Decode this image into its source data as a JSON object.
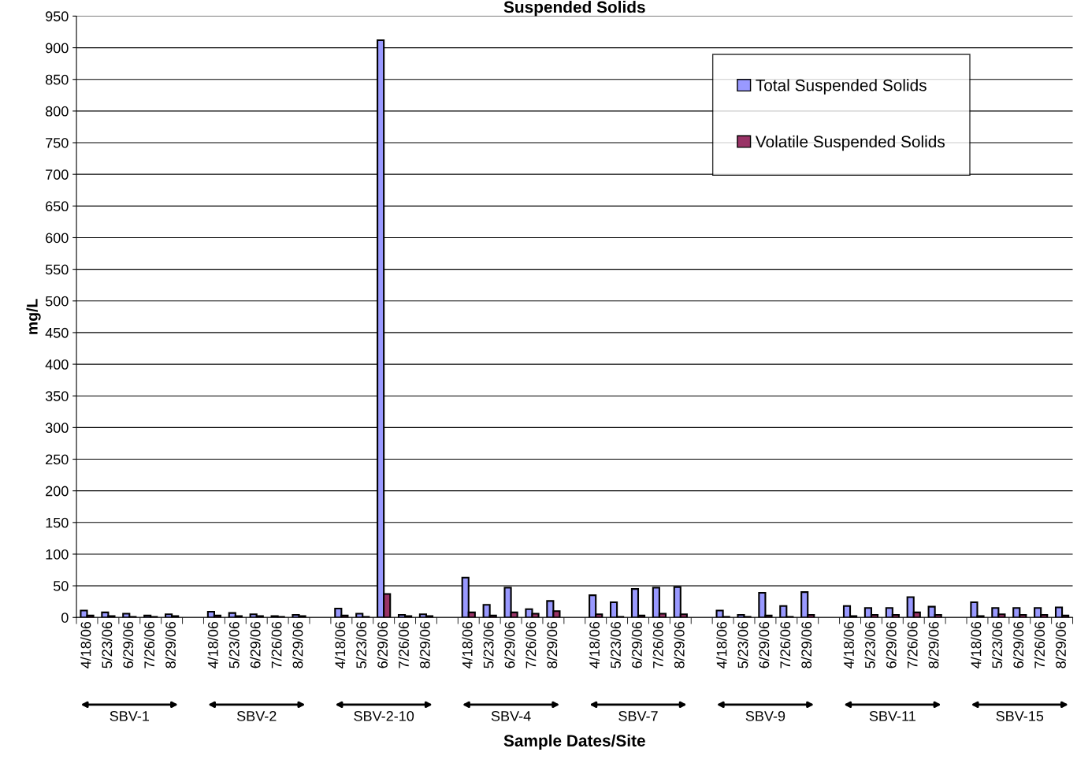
{
  "chart_data": {
    "type": "bar",
    "title": "Suspended Solids",
    "xlabel": "Sample Dates/Site",
    "ylabel": "mg/L",
    "categories": [
      "4/18/06",
      "5/23/06",
      "6/29/06",
      "7/26/06",
      "8/29/06",
      null,
      "4/18/06",
      "5/23/06",
      "6/29/06",
      "7/26/06",
      "8/29/06",
      null,
      "4/18/06",
      "5/23/06",
      "6/29/06",
      "7/26/06",
      "8/29/06",
      null,
      "4/18/06",
      "5/23/06",
      "6/29/06",
      "7/26/06",
      "8/29/06",
      null,
      "4/18/06",
      "5/23/06",
      "6/29/06",
      "7/26/06",
      "8/29/06",
      null,
      "4/18/06",
      "5/23/06",
      "6/29/06",
      "7/26/06",
      "8/29/06",
      null,
      "4/18/06",
      "5/23/06",
      "6/29/06",
      "7/26/06",
      "8/29/06",
      null,
      "4/18/06",
      "5/23/06",
      "6/29/06",
      "7/26/06",
      "8/29/06"
    ],
    "series": [
      {
        "name": "Total Suspended Solids",
        "color": "#9999ff",
        "values": [
          11,
          8,
          6,
          3,
          5,
          null,
          9,
          7,
          5,
          2,
          4,
          null,
          14,
          6,
          912,
          4,
          5,
          null,
          63,
          20,
          47,
          13,
          26,
          null,
          35,
          24,
          45,
          47,
          48,
          null,
          11,
          4,
          39,
          18,
          40,
          null,
          18,
          15,
          15,
          32,
          17,
          null,
          24,
          15,
          15,
          15,
          16
        ]
      },
      {
        "name": "Volatile Suspended Solids",
        "color": "#993366",
        "values": [
          3,
          2,
          1,
          1,
          2,
          null,
          3,
          2,
          2,
          1,
          2,
          null,
          3,
          1,
          37,
          2,
          2,
          null,
          8,
          3,
          8,
          6,
          10,
          null,
          5,
          1,
          3,
          6,
          5,
          null,
          1,
          1,
          3,
          1,
          4,
          null,
          2,
          4,
          4,
          8,
          4,
          null,
          2,
          5,
          4,
          4,
          3
        ]
      }
    ],
    "annotations": [
      "SBV-1",
      "SBV-2",
      "SBV-2-10",
      "SBV-4",
      "SBV-7",
      "SBV-9",
      "SBV-11",
      "SBV-15"
    ],
    "ylim": [
      0,
      950
    ],
    "yticks": [
      0,
      50,
      100,
      150,
      200,
      250,
      300,
      350,
      400,
      450,
      500,
      550,
      600,
      650,
      700,
      750,
      800,
      850,
      900,
      950
    ],
    "grid": "y",
    "legend": "top right"
  }
}
